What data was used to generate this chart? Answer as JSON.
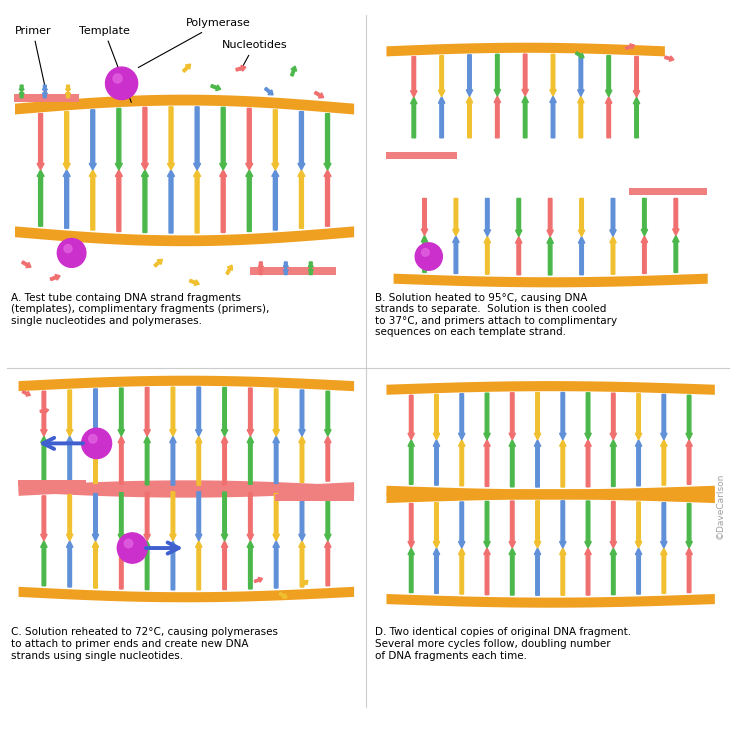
{
  "background_color": "#ffffff",
  "captions": {
    "A": "A. Test tube containg DNA strand fragments\n(templates), complimentary fragments (primers),\nsingle nucleotides and polymerases.",
    "B": "B. Solution heated to 95°C, causing DNA\nstrands to separate.  Solution is then cooled\nto 37°C, and primers attach to complimentary\nsequences on each template strand.",
    "C": "C. Solution reheated to 72°C, causing polymerases\nto attach to primer ends and create new DNA\nstrands using single nucleotides.",
    "D": "D. Two identical copies of original DNA fragment.\nSeveral more cycles follow, doubling number\nof DNA fragments each time."
  },
  "labels": {
    "primer": "Primer",
    "template": "Template",
    "polymerase": "Polymerase",
    "nucleotides": "Nucleotides"
  },
  "colors": {
    "backbone": "#f0a020",
    "primer_band": "#f08080",
    "green": "#4cb84c",
    "blue": "#6090d8",
    "yellow": "#f0c030",
    "pink": "#f07070",
    "polymerase": "#cc30cc",
    "poly_highlight": "#e060e0",
    "arrow_blue": "#4060d0",
    "watermark": "#a0a0a0",
    "text": "#000000",
    "divider": "#cccccc"
  },
  "watermark": "©DaveCarlson"
}
